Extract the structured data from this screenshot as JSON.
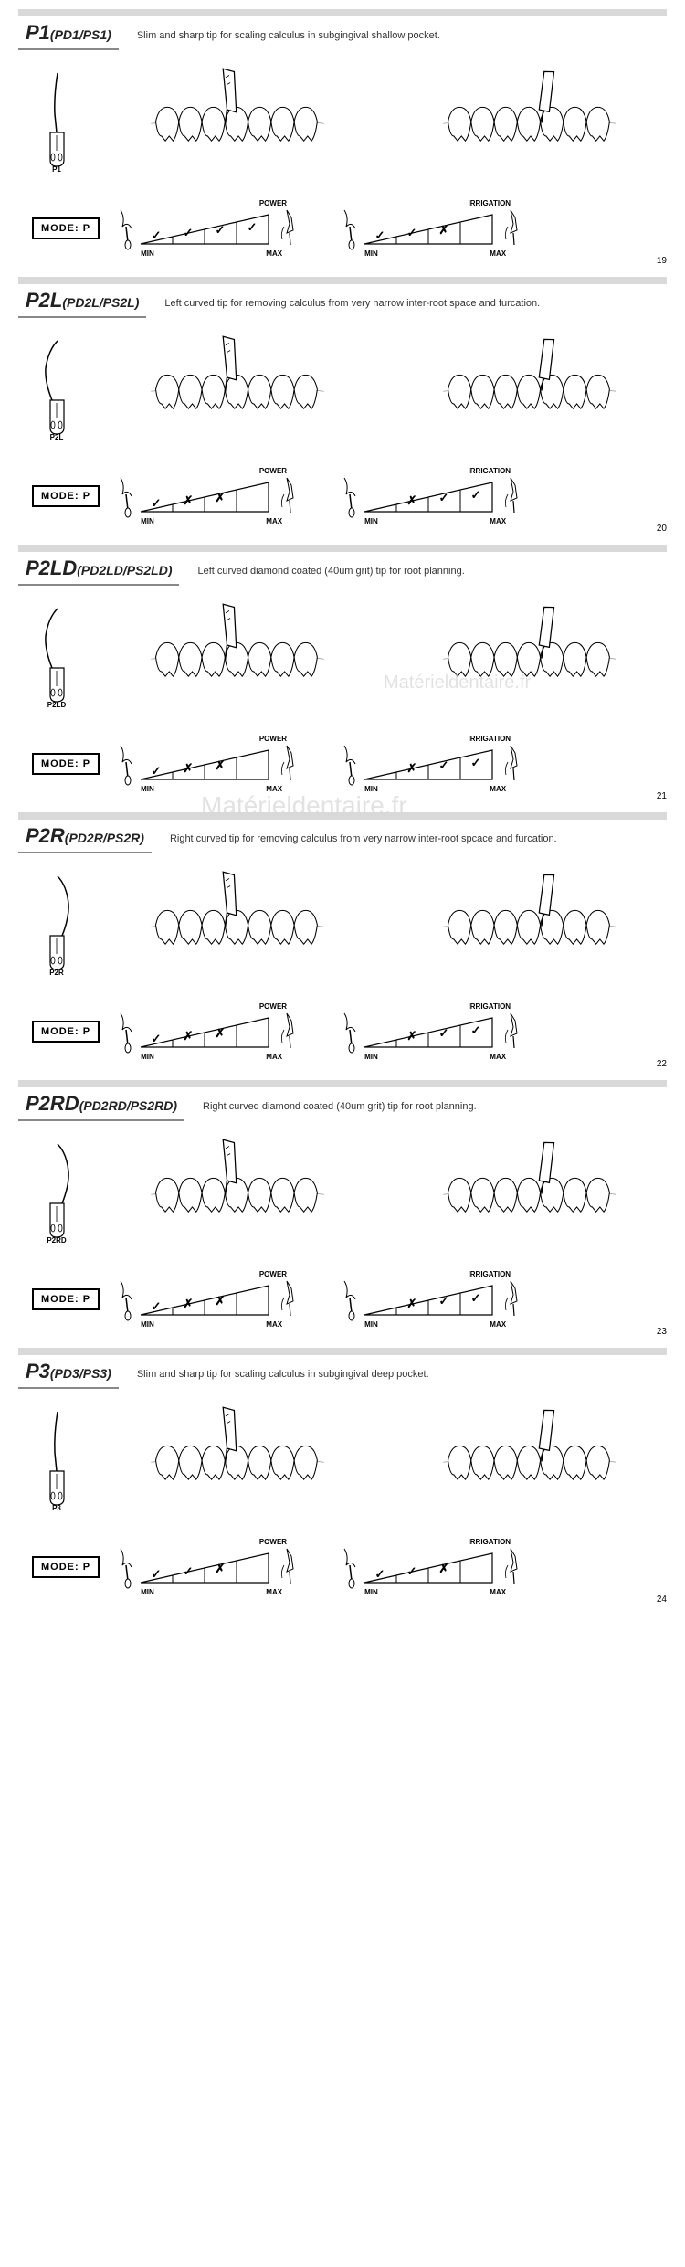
{
  "labels": {
    "mode": "MODE: P",
    "power": "POWER",
    "irrigation": "IRRIGATION",
    "min": "MIN",
    "max": "MAX"
  },
  "watermark": "Matérieldentaire.fr",
  "colors": {
    "gray_bar": "#d9d9d9",
    "text": "#222222",
    "line": "#000000"
  },
  "sections": [
    {
      "id": "P1",
      "title": "P1",
      "subtitle": "(PD1/PS1)",
      "desc": "Slim and sharp tip for scaling calculus in subgingival shallow pocket.",
      "tip_label": "P1",
      "curve": "straight",
      "power_marks": [
        "✓",
        "✓",
        "✓",
        "✓"
      ],
      "irrigation_marks": [
        "✓",
        "✓",
        "✗",
        ""
      ],
      "page": "19"
    },
    {
      "id": "P2L",
      "title": "P2L",
      "subtitle": "(PD2L/PS2L)",
      "desc": "Left curved tip for removing calculus from very narrow inter-root space and furcation.",
      "tip_label": "P2L",
      "curve": "left",
      "power_marks": [
        "✓",
        "✗",
        "✗",
        ""
      ],
      "irrigation_marks": [
        "",
        "✗",
        "✓",
        "✓"
      ],
      "page": "20"
    },
    {
      "id": "P2LD",
      "title": "P2LD",
      "subtitle": "(PD2LD/PS2LD)",
      "desc": "Left curved diamond coated (40um grit) tip for root planning.",
      "tip_label": "P2LD",
      "curve": "left",
      "power_marks": [
        "✓",
        "✗",
        "✗",
        ""
      ],
      "irrigation_marks": [
        "",
        "✗",
        "✓",
        "✓"
      ],
      "page": "21",
      "watermark": true
    },
    {
      "id": "P2R",
      "title": "P2R",
      "subtitle": "(PD2R/PS2R)",
      "desc": "Right curved tip for removing calculus from very narrow inter-root spcace and furcation.",
      "tip_label": "P2R",
      "curve": "right",
      "power_marks": [
        "✓",
        "✗",
        "✗",
        ""
      ],
      "irrigation_marks": [
        "",
        "✗",
        "✓",
        "✓"
      ],
      "page": "22"
    },
    {
      "id": "P2RD",
      "title": "P2RD",
      "subtitle": "(PD2RD/PS2RD)",
      "desc": "Right curved diamond coated (40um grit) tip for root planning.",
      "tip_label": "P2RD",
      "curve": "right",
      "power_marks": [
        "✓",
        "✗",
        "✗",
        ""
      ],
      "irrigation_marks": [
        "",
        "✗",
        "✓",
        "✓"
      ],
      "page": "23"
    },
    {
      "id": "P3",
      "title": "P3",
      "subtitle": "(PD3/PS3)",
      "desc": "Slim and sharp tip for scaling calculus in subgingival deep pocket.",
      "tip_label": "P3",
      "curve": "straight",
      "power_marks": [
        "✓",
        "✓",
        "✗",
        ""
      ],
      "irrigation_marks": [
        "✓",
        "✓",
        "✗",
        ""
      ],
      "page": "24"
    }
  ]
}
